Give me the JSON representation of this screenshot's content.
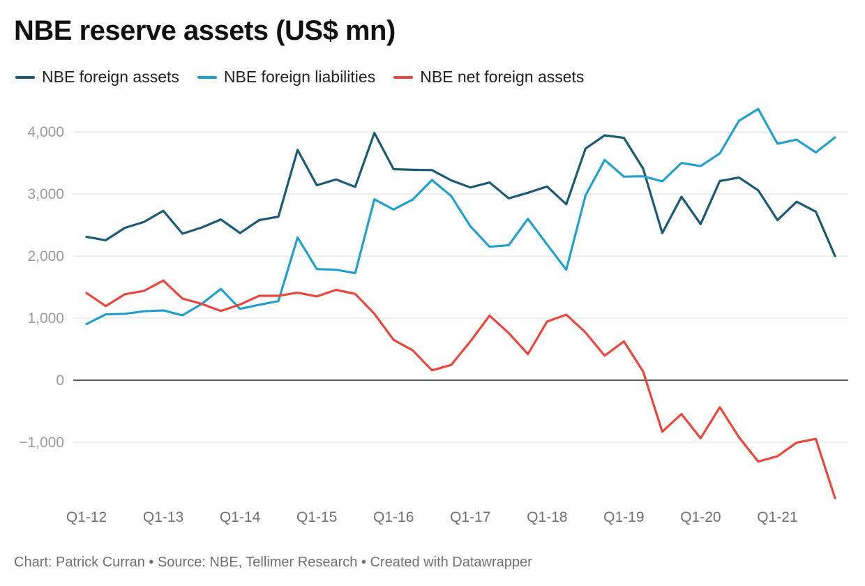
{
  "chart_data": {
    "type": "line",
    "title": "NBE reserve assets (US$ mn)",
    "footer": "Chart: Patrick Curran • Source: NBE, Tellimer Research • Created with Datawrapper",
    "xlabel": "",
    "ylabel": "",
    "ylim": [
      -2000,
      4400
    ],
    "yticks": [
      -1000,
      0,
      1000,
      2000,
      3000,
      4000
    ],
    "ytick_labels": [
      "−1,000",
      "0",
      "1,000",
      "2,000",
      "3,000",
      "4,000"
    ],
    "x": [
      "Q1-12",
      "Q2-12",
      "Q3-12",
      "Q4-12",
      "Q1-13",
      "Q2-13",
      "Q3-13",
      "Q4-13",
      "Q1-14",
      "Q2-14",
      "Q3-14",
      "Q4-14",
      "Q1-15",
      "Q2-15",
      "Q3-15",
      "Q4-15",
      "Q1-16",
      "Q2-16",
      "Q3-16",
      "Q4-16",
      "Q1-17",
      "Q2-17",
      "Q3-17",
      "Q4-17",
      "Q1-18",
      "Q2-18",
      "Q3-18",
      "Q4-18",
      "Q1-19",
      "Q2-19",
      "Q3-19",
      "Q4-19",
      "Q1-20",
      "Q2-20",
      "Q3-20",
      "Q4-20",
      "Q1-21",
      "Q2-21",
      "Q3-21",
      "Q4-21"
    ],
    "xtick_labels": [
      "Q1-12",
      "Q1-13",
      "Q1-14",
      "Q1-15",
      "Q1-16",
      "Q1-17",
      "Q1-18",
      "Q1-19",
      "Q1-20",
      "Q1-21"
    ],
    "grid": true,
    "legend_position": "top-left",
    "series": [
      {
        "name": "NBE foreign assets",
        "color": "#1b5a73",
        "values": [
          2310,
          2255,
          2455,
          2550,
          2730,
          2360,
          2460,
          2590,
          2370,
          2580,
          2635,
          3710,
          3140,
          3235,
          3115,
          3985,
          3400,
          3390,
          3385,
          3220,
          3105,
          3185,
          2930,
          3020,
          3120,
          2835,
          3730,
          3945,
          3905,
          3410,
          2370,
          2955,
          2515,
          3210,
          3265,
          3060,
          2580,
          2875,
          2715,
          2000
        ]
      },
      {
        "name": "NBE foreign liabilities",
        "color": "#22a0cc",
        "values": [
          905,
          1060,
          1070,
          1110,
          1125,
          1045,
          1230,
          1470,
          1150,
          1215,
          1275,
          2300,
          1790,
          1780,
          1725,
          2915,
          2750,
          2910,
          3225,
          2970,
          2480,
          2150,
          2175,
          2600,
          2185,
          1780,
          2975,
          3550,
          3280,
          3285,
          3205,
          3500,
          3450,
          3655,
          4180,
          4370,
          3810,
          3875,
          3670,
          3910
        ]
      },
      {
        "name": "NBE net foreign assets",
        "color": "#e8473e",
        "values": [
          1405,
          1195,
          1385,
          1440,
          1605,
          1315,
          1230,
          1115,
          1220,
          1360,
          1360,
          1410,
          1350,
          1455,
          1390,
          1070,
          650,
          480,
          160,
          245,
          625,
          1040,
          760,
          420,
          945,
          1055,
          770,
          395,
          625,
          140,
          -830,
          -545,
          -935,
          -435,
          -920,
          -1310,
          -1225,
          -1005,
          -945,
          -1900
        ]
      }
    ]
  }
}
